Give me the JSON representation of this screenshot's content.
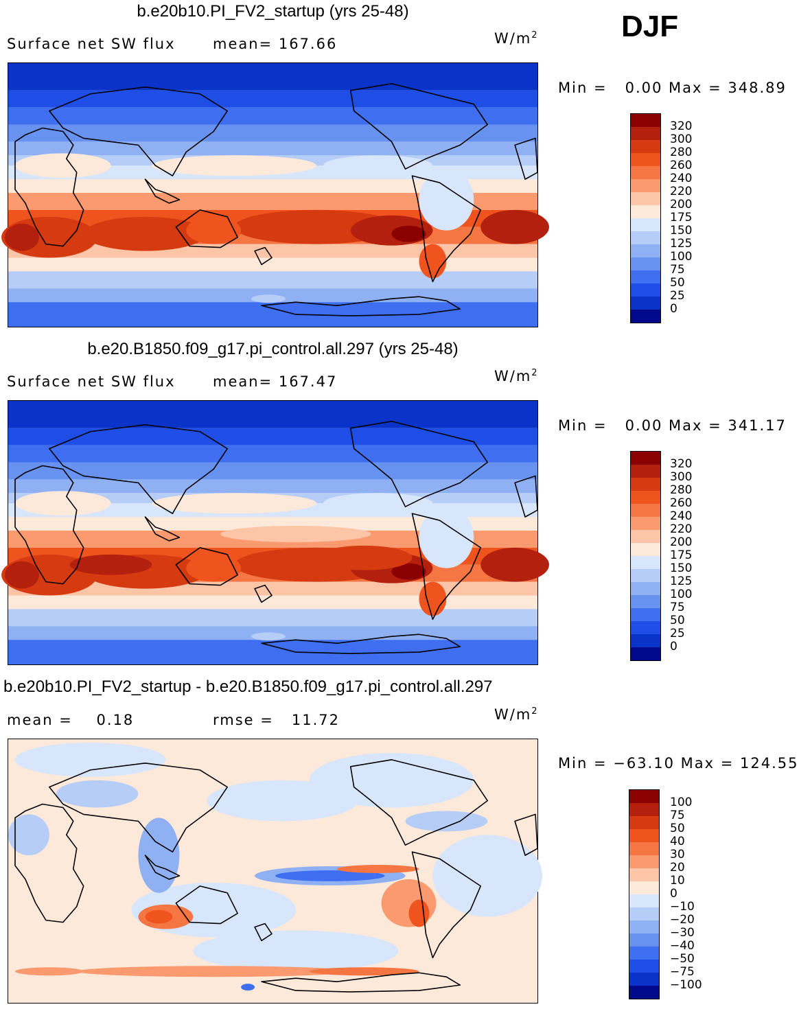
{
  "season": "DJF",
  "panels": [
    {
      "title": "b.e20b10.PI_FV2_startup (yrs 25-48)",
      "left_label": "Surface net SW flux",
      "stat_label": "mean=",
      "stat_value": "167.66",
      "unit": "W/m",
      "unit_sup": "2",
      "min_label": "Min =",
      "min_value": "0.00",
      "max_label": "Max =",
      "max_value": "348.89"
    },
    {
      "title": "b.e20.B1850.f09_g17.pi_control.all.297 (yrs 25-48)",
      "left_label": "Surface net SW flux",
      "stat_label": "mean=",
      "stat_value": "167.47",
      "unit": "W/m",
      "unit_sup": "2",
      "min_label": "Min =",
      "min_value": "0.00",
      "max_label": "Max =",
      "max_value": "341.17"
    },
    {
      "title": "b.e20b10.PI_FV2_startup - b.e20.B1850.f09_g17.pi_control.all.297",
      "left_label": "mean =",
      "left_value": "0.18",
      "stat_label": "rmse =",
      "stat_value": "11.72",
      "unit": "W/m",
      "unit_sup": "2",
      "min_label": "Min =",
      "min_value": "−63.10",
      "max_label": "Max =",
      "max_value": "124.55"
    }
  ],
  "colorbars": {
    "absolute": {
      "levels": [
        "320",
        "300",
        "280",
        "260",
        "240",
        "220",
        "200",
        "175",
        "150",
        "125",
        "100",
        "75",
        "50",
        "25",
        "0"
      ],
      "colors": [
        "#8b0000",
        "#b3200e",
        "#d63a10",
        "#f0541e",
        "#f57643",
        "#fa9a6e",
        "#fcc5a8",
        "#fde9da",
        "#d7e6fb",
        "#b5cdf7",
        "#8fb1f4",
        "#6892f0",
        "#3f6ff0",
        "#1f4ee6",
        "#0a34c9",
        "#000a8a"
      ]
    },
    "difference": {
      "levels": [
        "100",
        "75",
        "50",
        "40",
        "30",
        "20",
        "10",
        "0",
        "−10",
        "−20",
        "−30",
        "−40",
        "−50",
        "−75",
        "−100"
      ],
      "colors": [
        "#8b0000",
        "#b3200e",
        "#d63a10",
        "#f0541e",
        "#f57643",
        "#fa9a6e",
        "#fcc5a8",
        "#fde9da",
        "#d7e6fb",
        "#b5cdf7",
        "#8fb1f4",
        "#6892f0",
        "#3f6ff0",
        "#1f4ee6",
        "#0a34c9",
        "#000a8a"
      ]
    }
  },
  "chart_data": [
    {
      "type": "heatmap",
      "title": "b.e20b10.PI_FV2_startup (yrs 25-48)",
      "variable": "Surface net SW flux",
      "units": "W/m2",
      "season": "DJF",
      "mean": 167.66,
      "min": 0.0,
      "max": 348.89,
      "contour_levels": [
        0,
        25,
        50,
        75,
        100,
        125,
        150,
        175,
        200,
        220,
        240,
        260,
        280,
        300,
        320
      ]
    },
    {
      "type": "heatmap",
      "title": "b.e20.B1850.f09_g17.pi_control.all.297 (yrs 25-48)",
      "variable": "Surface net SW flux",
      "units": "W/m2",
      "season": "DJF",
      "mean": 167.47,
      "min": 0.0,
      "max": 341.17,
      "contour_levels": [
        0,
        25,
        50,
        75,
        100,
        125,
        150,
        175,
        200,
        220,
        240,
        260,
        280,
        300,
        320
      ]
    },
    {
      "type": "heatmap",
      "title": "b.e20b10.PI_FV2_startup - b.e20.B1850.f09_g17.pi_control.all.297",
      "variable": "Surface net SW flux difference",
      "units": "W/m2",
      "season": "DJF",
      "mean": 0.18,
      "rmse": 11.72,
      "min": -63.1,
      "max": 124.55,
      "contour_levels": [
        -100,
        -75,
        -50,
        -40,
        -30,
        -20,
        -10,
        0,
        10,
        20,
        30,
        40,
        50,
        75,
        100
      ]
    }
  ]
}
